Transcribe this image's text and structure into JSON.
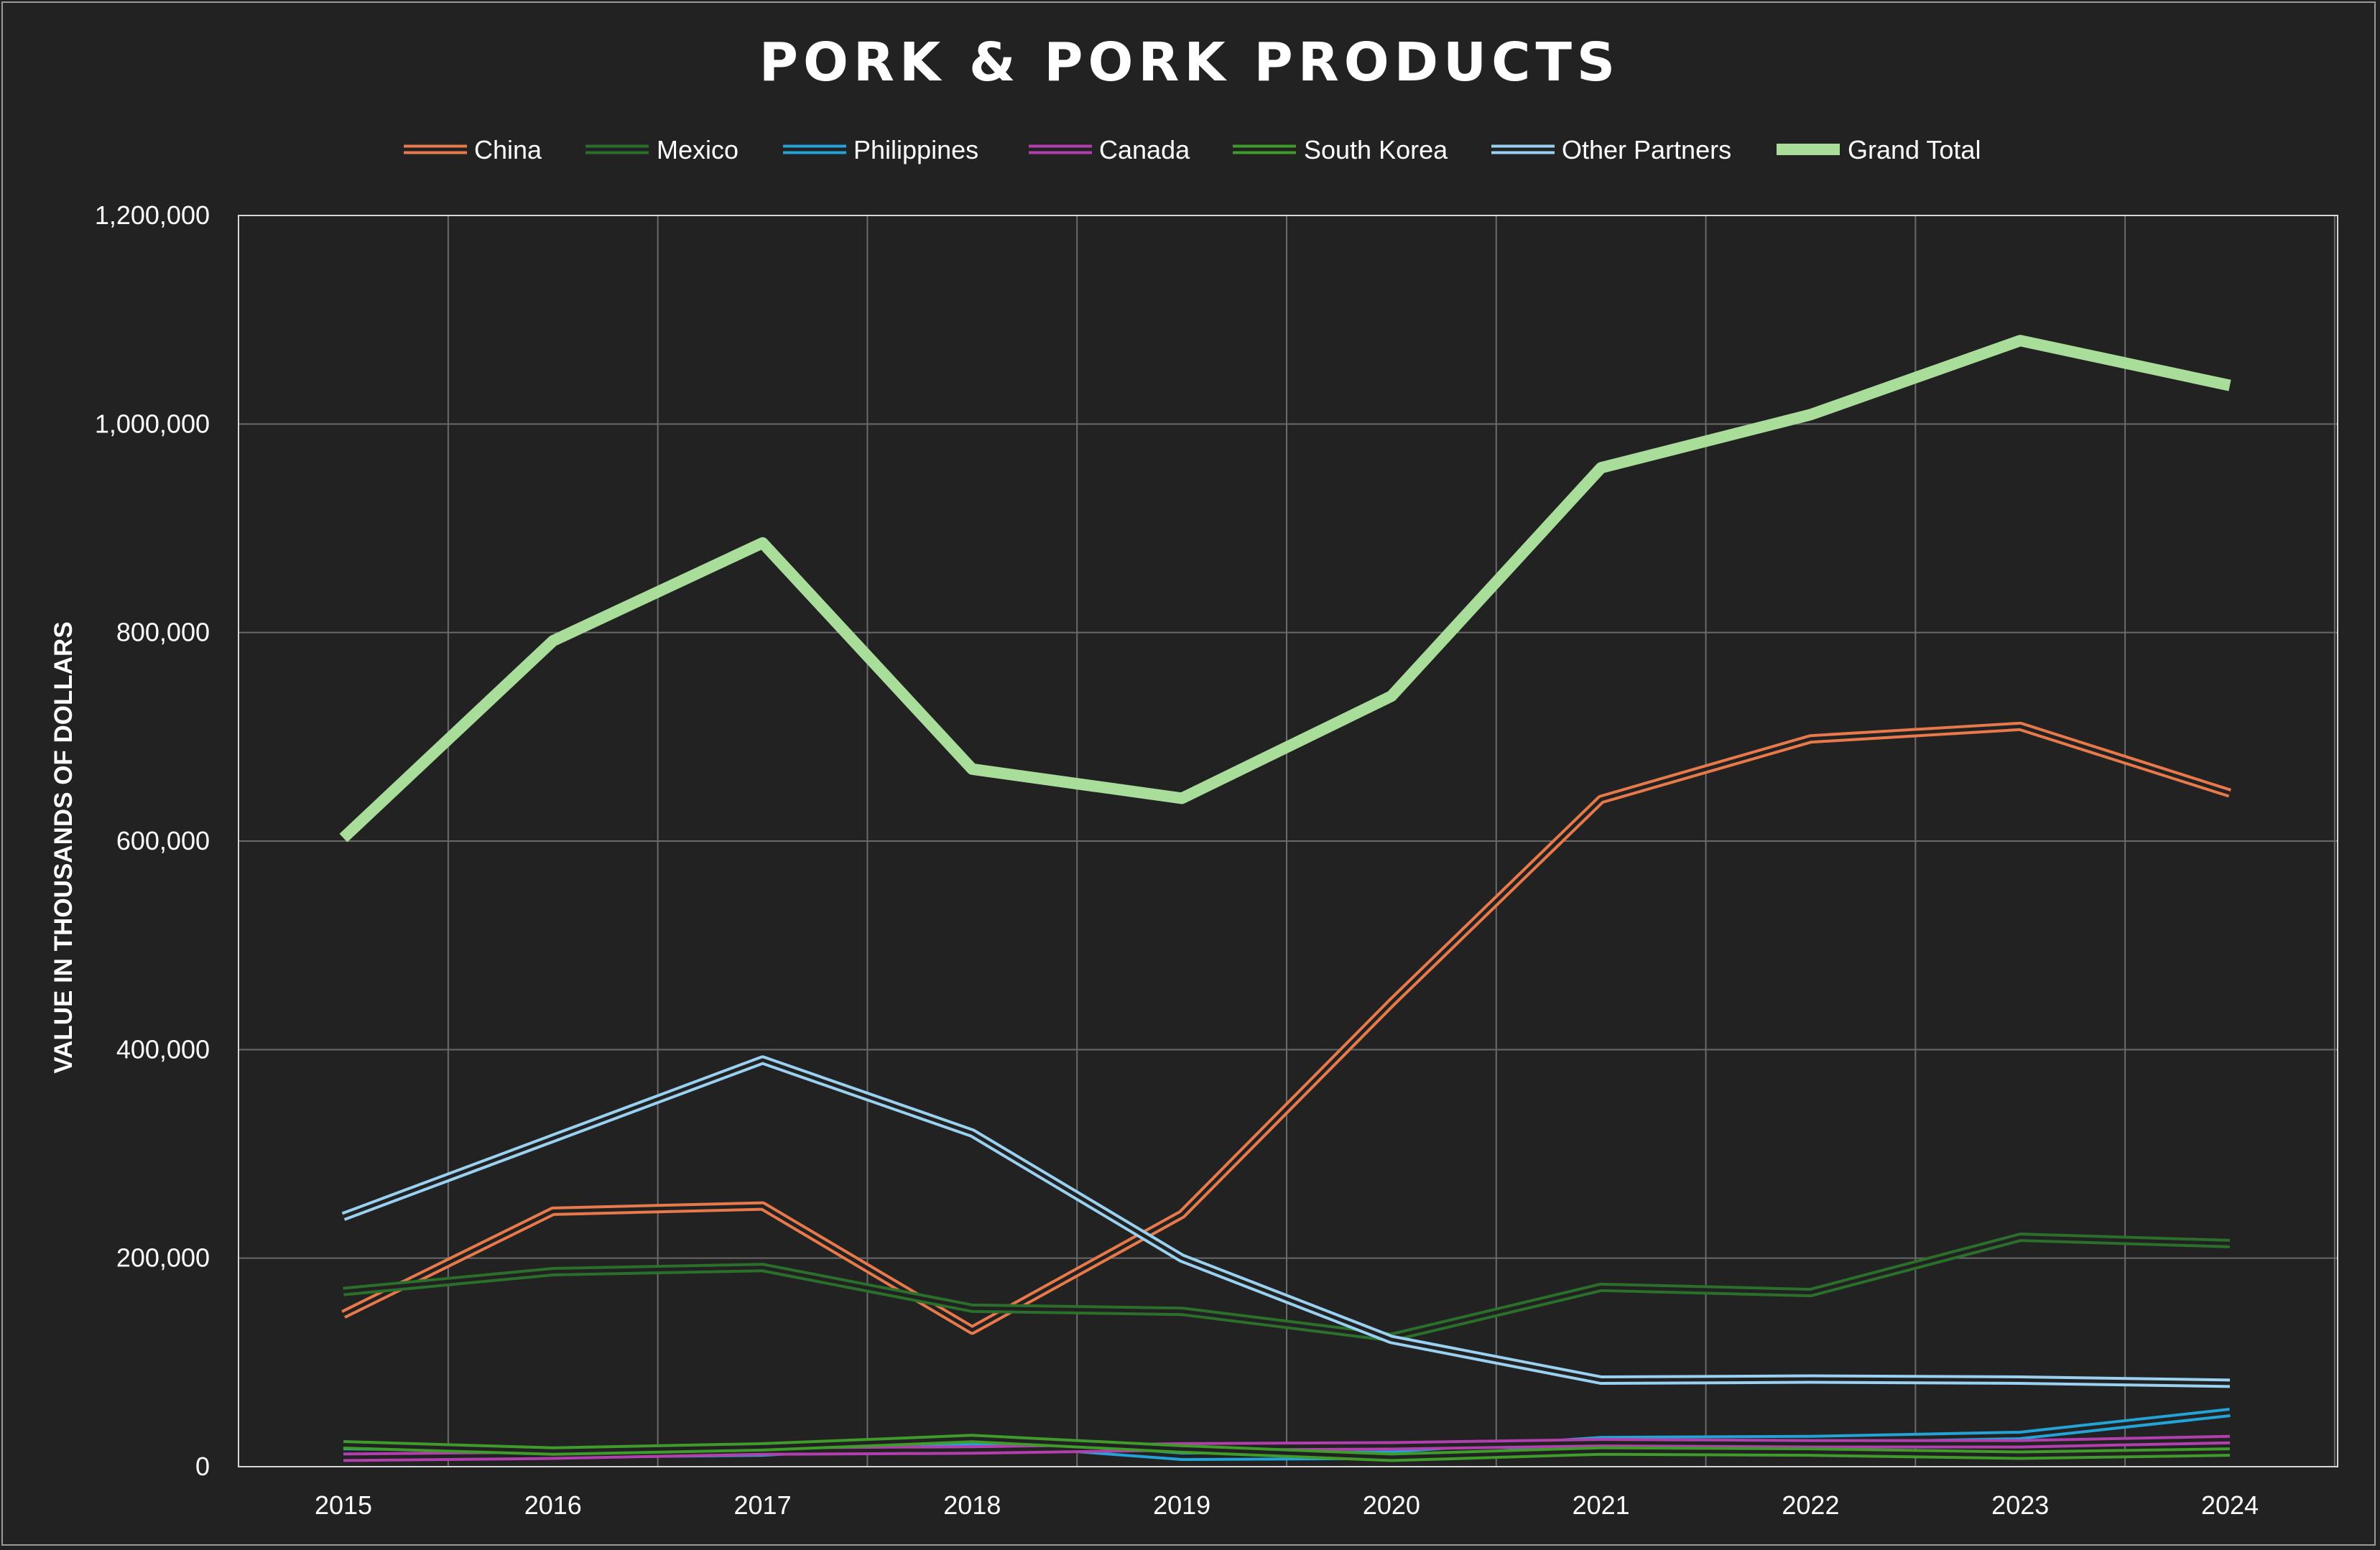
{
  "chart_data": {
    "type": "line",
    "title": "PORK & PORK PRODUCTS",
    "xlabel": "",
    "ylabel": "VALUE IN THOUSANDS OF DOLLARS",
    "x": [
      "2015",
      "2016",
      "2017",
      "2018",
      "2019",
      "2020",
      "2021",
      "2022",
      "2023",
      "2024"
    ],
    "ylim": [
      0,
      1200000
    ],
    "yticks": [
      0,
      200000,
      400000,
      600000,
      800000,
      1000000,
      1200000
    ],
    "ytick_labels": [
      "0",
      "200,000",
      "400,000",
      "600,000",
      "800,000",
      "1,000,000",
      "1,200,000"
    ],
    "grid": true,
    "legend_position": "top",
    "series": [
      {
        "name": "China",
        "color": "#e8794a",
        "style": "double",
        "values": [
          146000,
          245000,
          250000,
          131000,
          242000,
          445000,
          640000,
          698000,
          710000,
          646000
        ]
      },
      {
        "name": "Mexico",
        "color": "#2a6f2a",
        "style": "double",
        "values": [
          168000,
          187000,
          191000,
          152000,
          149000,
          124000,
          172000,
          167000,
          220000,
          214000
        ]
      },
      {
        "name": "Philippines",
        "color": "#23a3d6",
        "style": "double",
        "values": [
          14000,
          12000,
          14000,
          25000,
          10000,
          11000,
          25000,
          26000,
          30000,
          52000
        ]
      },
      {
        "name": "Canada",
        "color": "#b13fae",
        "style": "double",
        "values": [
          9000,
          11000,
          15000,
          16000,
          19000,
          20000,
          23000,
          22000,
          22000,
          26000
        ]
      },
      {
        "name": "South Korea",
        "color": "#3f9b2a",
        "style": "double",
        "values": [
          21000,
          15000,
          19000,
          27000,
          17000,
          9000,
          15000,
          14000,
          11000,
          14000
        ]
      },
      {
        "name": "Other Partners",
        "color": "#9ad1f0",
        "style": "double",
        "values": [
          240000,
          315000,
          390000,
          320000,
          200000,
          122000,
          83000,
          84000,
          83000,
          80000
        ]
      },
      {
        "name": "Grand Total",
        "color": "#a9dd9a",
        "style": "thick",
        "values": [
          603000,
          792000,
          886000,
          669000,
          641000,
          739000,
          958000,
          1009000,
          1080000,
          1037000
        ]
      }
    ]
  }
}
